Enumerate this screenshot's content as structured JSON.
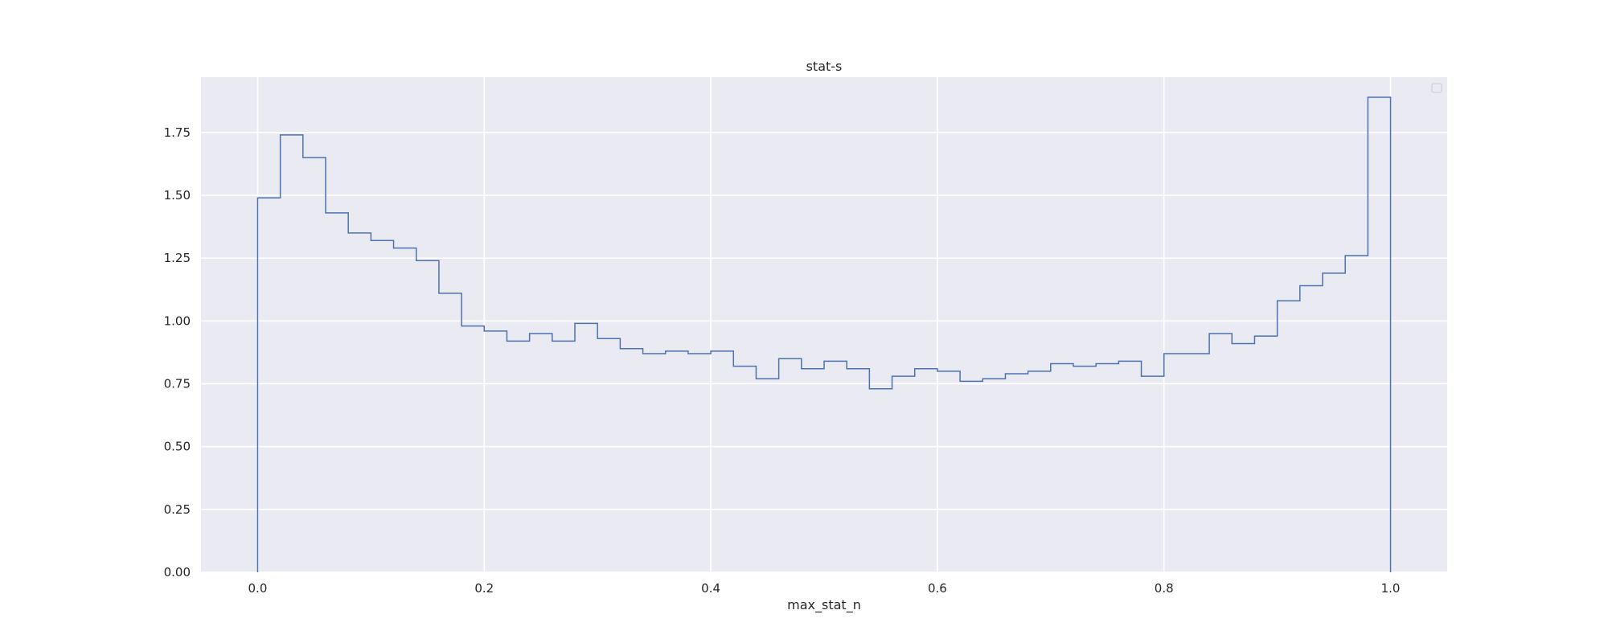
{
  "chart_data": {
    "type": "histogram",
    "title": "stat-s",
    "xlabel": "max_stat_n",
    "ylabel": "",
    "xlim": [
      -0.05,
      1.05
    ],
    "ylim": [
      0,
      1.97
    ],
    "xticks": [
      0.0,
      0.2,
      0.4,
      0.6,
      0.8,
      1.0
    ],
    "xtick_labels": [
      "0.0",
      "0.2",
      "0.4",
      "0.6",
      "0.8",
      "1.0"
    ],
    "yticks": [
      0.0,
      0.25,
      0.5,
      0.75,
      1.0,
      1.25,
      1.5,
      1.75
    ],
    "ytick_labels": [
      "0.00",
      "0.25",
      "0.50",
      "0.75",
      "1.00",
      "1.25",
      "1.50",
      "1.75"
    ],
    "grid": true,
    "legend": "top-right (empty)",
    "histtype": "step",
    "bin_edges": [
      0.0,
      0.02,
      0.04,
      0.06,
      0.08,
      0.1,
      0.12,
      0.14,
      0.16,
      0.18,
      0.2,
      0.22,
      0.24,
      0.26,
      0.28,
      0.3,
      0.32,
      0.34,
      0.36,
      0.38,
      0.4,
      0.42,
      0.44,
      0.46,
      0.48,
      0.5,
      0.52,
      0.54,
      0.56,
      0.58,
      0.6,
      0.62,
      0.64,
      0.66,
      0.68,
      0.7,
      0.72,
      0.74,
      0.76,
      0.78,
      0.8,
      0.82,
      0.84,
      0.86,
      0.88,
      0.9,
      0.92,
      0.94,
      0.96,
      0.98,
      1.0
    ],
    "values": [
      1.49,
      1.74,
      1.65,
      1.43,
      1.35,
      1.32,
      1.29,
      1.24,
      1.11,
      0.98,
      0.96,
      0.92,
      0.95,
      0.92,
      0.99,
      0.93,
      0.89,
      0.87,
      0.88,
      0.87,
      0.88,
      0.82,
      0.77,
      0.85,
      0.81,
      0.84,
      0.81,
      0.73,
      0.78,
      0.81,
      0.8,
      0.76,
      0.77,
      0.79,
      0.8,
      0.83,
      0.82,
      0.83,
      0.84,
      0.78,
      0.87,
      0.87,
      0.95,
      0.91,
      0.94,
      1.08,
      1.14,
      1.19,
      1.26,
      1.89
    ],
    "colors": {
      "line": "#4c72b0",
      "axes_bg": "#eaeaf2",
      "grid": "#ffffff",
      "text": "#262626"
    }
  }
}
